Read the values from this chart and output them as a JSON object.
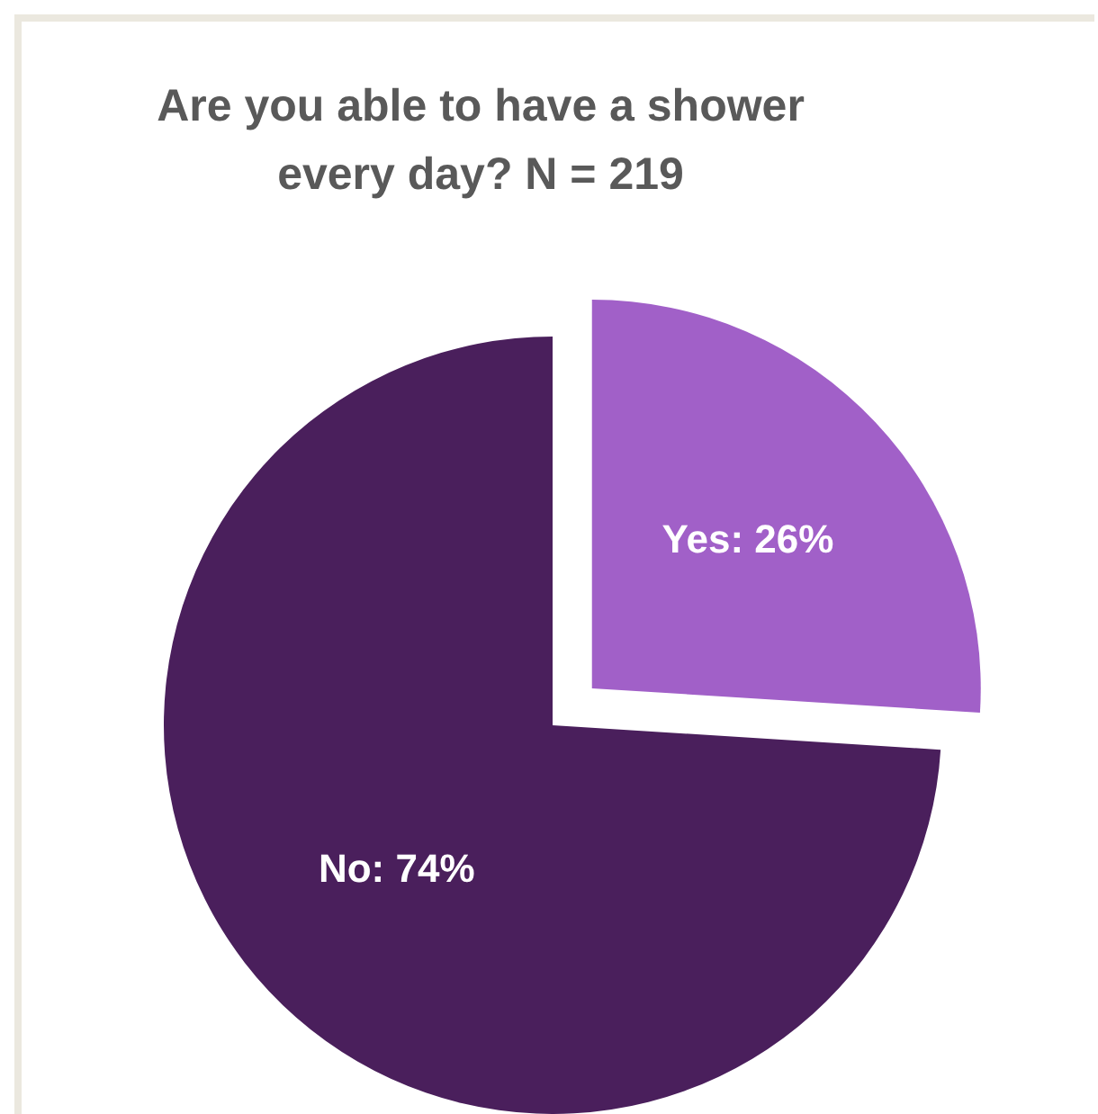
{
  "chart_data": {
    "type": "pie",
    "title": "Are you able to have a shower every day? N = 219",
    "categories": [
      "Yes",
      "No"
    ],
    "values": [
      26,
      74
    ],
    "value_labels": [
      "26%",
      "74%"
    ],
    "colors": [
      "#a160c8",
      "#4a1f5c"
    ]
  }
}
